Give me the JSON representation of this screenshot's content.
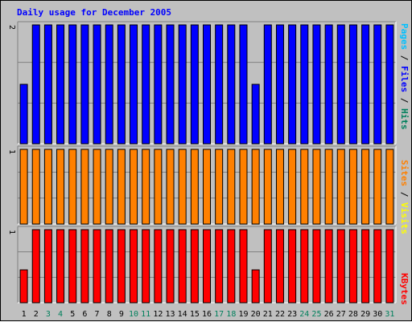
{
  "title": "Daily usage for December 2005",
  "colors": {
    "hits": "#00805c",
    "files": "#0000ff",
    "pages": "#00c0ff",
    "visits": "#ffff00",
    "sites": "#ff8000",
    "kbytes": "#ff0000",
    "weekend_day": "#00805c",
    "weekday": "#000000"
  },
  "right_labels": {
    "panel1": [
      "Pages",
      " / ",
      "Files",
      " / ",
      "Hits"
    ],
    "panel2": [
      "Sites",
      " / ",
      "Visits"
    ],
    "panel3": [
      "KBytes"
    ]
  },
  "chart_data": [
    {
      "type": "bar",
      "panel": "Pages / Files / Hits",
      "ytick_label": "2",
      "categories": [
        1,
        2,
        3,
        4,
        5,
        6,
        7,
        8,
        9,
        10,
        11,
        12,
        13,
        14,
        15,
        16,
        17,
        18,
        19,
        20,
        21,
        22,
        23,
        24,
        25,
        26,
        27,
        28,
        29,
        30,
        31
      ],
      "series": [
        {
          "name": "Files",
          "values": [
            1,
            2,
            2,
            2,
            2,
            2,
            2,
            2,
            2,
            2,
            2,
            2,
            2,
            2,
            2,
            2,
            2,
            2,
            2,
            1,
            2,
            2,
            2,
            2,
            2,
            2,
            2,
            2,
            2,
            2,
            2
          ]
        }
      ],
      "ylim": [
        0,
        2
      ]
    },
    {
      "type": "bar",
      "panel": "Sites / Visits",
      "ytick_label": "1",
      "categories": [
        1,
        2,
        3,
        4,
        5,
        6,
        7,
        8,
        9,
        10,
        11,
        12,
        13,
        14,
        15,
        16,
        17,
        18,
        19,
        20,
        21,
        22,
        23,
        24,
        25,
        26,
        27,
        28,
        29,
        30,
        31
      ],
      "series": [
        {
          "name": "Sites",
          "values": [
            1,
            1,
            1,
            1,
            1,
            1,
            1,
            1,
            1,
            1,
            1,
            1,
            1,
            1,
            1,
            1,
            1,
            1,
            1,
            1,
            1,
            1,
            1,
            1,
            1,
            1,
            1,
            1,
            1,
            1,
            1
          ]
        }
      ],
      "ylim": [
        0,
        1
      ]
    },
    {
      "type": "bar",
      "panel": "KBytes",
      "ytick_label": "1",
      "categories": [
        1,
        2,
        3,
        4,
        5,
        6,
        7,
        8,
        9,
        10,
        11,
        12,
        13,
        14,
        15,
        16,
        17,
        18,
        19,
        20,
        21,
        22,
        23,
        24,
        25,
        26,
        27,
        28,
        29,
        30,
        31
      ],
      "series": [
        {
          "name": "KBytes",
          "values": [
            0.45,
            1,
            1,
            1,
            1,
            1,
            1,
            1,
            1,
            1,
            1,
            1,
            1,
            1,
            1,
            1,
            1,
            1,
            1,
            0.45,
            1,
            1,
            1,
            1,
            1,
            1,
            1,
            1,
            1,
            1,
            1
          ]
        }
      ],
      "ylim": [
        0,
        1
      ]
    }
  ],
  "days": [
    "1",
    "2",
    "3",
    "4",
    "5",
    "6",
    "7",
    "8",
    "9",
    "10",
    "11",
    "12",
    "13",
    "14",
    "15",
    "16",
    "17",
    "18",
    "19",
    "20",
    "21",
    "22",
    "23",
    "24",
    "25",
    "26",
    "27",
    "28",
    "29",
    "30",
    "31"
  ],
  "weekend_days": [
    3,
    4,
    10,
    11,
    17,
    18,
    24,
    25,
    31
  ]
}
